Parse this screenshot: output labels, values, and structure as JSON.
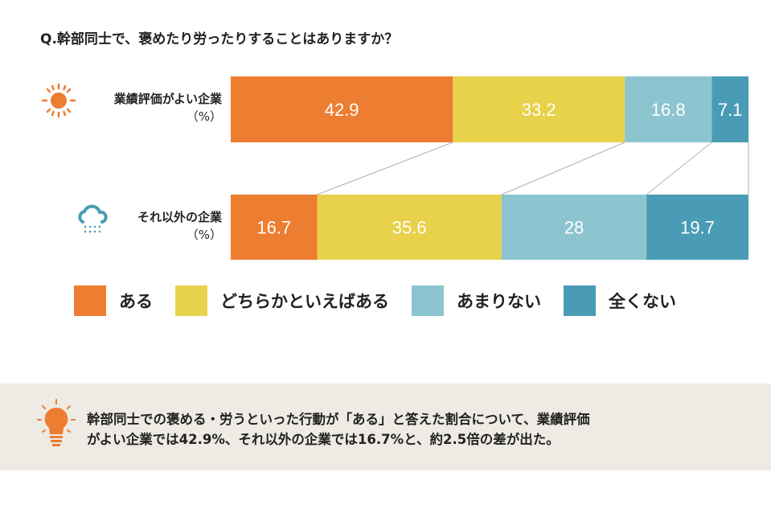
{
  "title": "Q.幹部同士で、褒めたり労ったりすることはありますか？",
  "chart_data": {
    "type": "bar",
    "stacked": true,
    "orientation": "horizontal",
    "title": "Q.幹部同士で、褒めたり労ったりすることはありますか？",
    "categories": [
      {
        "label": "業績評価がよい企業",
        "unit": "（%）",
        "icon": "sun-icon"
      },
      {
        "label": "それ以外の企業",
        "unit": "（%）",
        "icon": "rain-cloud-icon"
      }
    ],
    "series": [
      {
        "name": "ある",
        "color": "#ED7D31",
        "values": [
          42.9,
          16.7
        ]
      },
      {
        "name": "どちらかといえばある",
        "color": "#E8D14B",
        "values": [
          33.2,
          35.6
        ]
      },
      {
        "name": "あまりない",
        "color": "#8CC4CF",
        "values": [
          16.8,
          28
        ]
      },
      {
        "name": "全くない",
        "color": "#4A9CB6",
        "values": [
          7.1,
          19.7
        ]
      }
    ],
    "xlim": [
      0,
      100
    ],
    "legend": "bottom"
  },
  "note": {
    "icon": "lightbulb-icon",
    "line1": "幹部同士での褒める・労うといった行動が「ある」と答えた割合について、業績評価",
    "line2": "がよい企業では42.9%、それ以外の企業では16.7%と、約2.5倍の差が出た。"
  }
}
